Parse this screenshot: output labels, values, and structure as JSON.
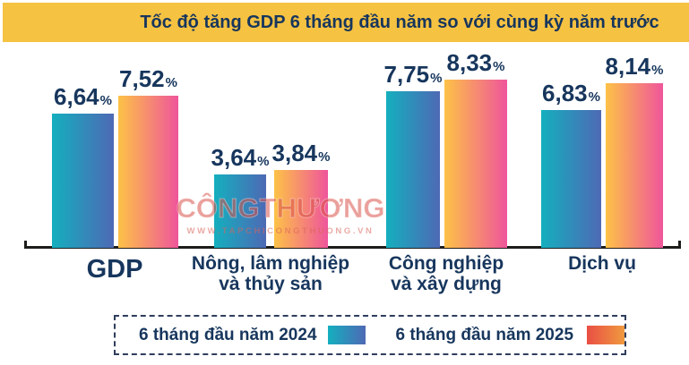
{
  "title": "Tốc độ tăng GDP 6 tháng đầu năm so với cùng kỳ năm trước",
  "watermark": {
    "brand": "CÔNGTHƯƠNG",
    "url": "WWW.TAPCHICONGTHUONG.VN"
  },
  "legend": {
    "items": [
      {
        "label": "6 tháng đầu năm 2024",
        "swatch_gradient": [
          "#14AFBE",
          "#4E69B5"
        ]
      },
      {
        "label": "6 tháng đầu năm 2025",
        "swatch_gradient": [
          "#E94E44",
          "#F09A3F"
        ]
      }
    ]
  },
  "chart_data": {
    "type": "bar",
    "title": "Tốc độ tăng GDP 6 tháng đầu năm so với cùng kỳ năm trước",
    "categories": [
      "GDP",
      "Nông, lâm nghiệp và thủy sản",
      "Công nghiệp và xây dựng",
      "Dịch vụ"
    ],
    "category_lines": [
      [
        "GDP"
      ],
      [
        "Nông, lâm nghiệp",
        "và thủy sản"
      ],
      [
        "Công nghiệp",
        "và xây dựng"
      ],
      [
        "Dịch vụ"
      ]
    ],
    "series": [
      {
        "name": "6 tháng đầu năm 2024",
        "values": [
          6.64,
          3.64,
          7.75,
          6.83
        ],
        "labels": [
          "6,64",
          "3,64",
          "7,75",
          "6,83"
        ],
        "gradient": [
          "#14AFBE",
          "#4E69B5"
        ]
      },
      {
        "name": "6 tháng đầu năm 2025",
        "values": [
          7.52,
          3.84,
          8.33,
          8.14
        ],
        "labels": [
          "7,52",
          "3,84",
          "8,33",
          "8,14"
        ],
        "gradient": [
          "#FDC247",
          "#EF559B"
        ]
      }
    ],
    "unit": "%",
    "ylim": [
      0,
      9
    ],
    "grid": false,
    "legend_position": "bottom"
  },
  "colors": {
    "title_band": "#F6C242",
    "text_navy": "#17365D",
    "axis": "#1D1D1B",
    "watermark_red": "#D8524A",
    "series_2024": [
      "#14AFBE",
      "#4E69B5"
    ],
    "series_2025_bars": [
      "#FDC247",
      "#EF559B"
    ],
    "series_2025_legend": [
      "#E94E44",
      "#F09A3F"
    ]
  }
}
